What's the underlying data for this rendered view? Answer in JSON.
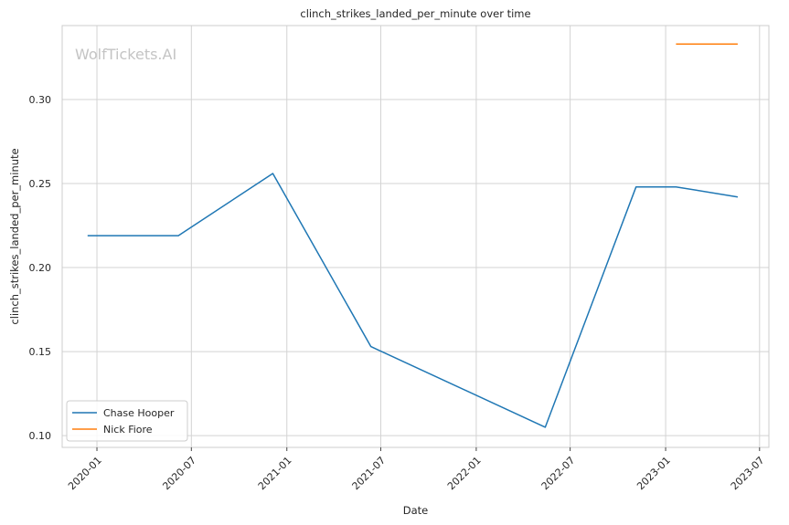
{
  "chart_data": {
    "type": "line",
    "title": "clinch_strikes_landed_per_minute over time",
    "xlabel": "Date",
    "ylabel": "clinch_strikes_landed_per_minute",
    "watermark": "WolfTickets.AI",
    "xlim": [
      "2019-10-26",
      "2023-07-19"
    ],
    "ylim": [
      0.093,
      0.344
    ],
    "x_ticks": [
      "2020-01",
      "2020-07",
      "2021-01",
      "2021-07",
      "2022-01",
      "2022-07",
      "2023-01",
      "2023-07"
    ],
    "y_ticks": [
      "0.10",
      "0.15",
      "0.20",
      "0.25",
      "0.30"
    ],
    "grid": true,
    "legend_position": "lower-left",
    "series": [
      {
        "name": "Chase Hooper",
        "color": "#1f77b4",
        "points": [
          {
            "x": "2019-12-14",
            "y": 0.219
          },
          {
            "x": "2020-06-06",
            "y": 0.219
          },
          {
            "x": "2020-12-05",
            "y": 0.256
          },
          {
            "x": "2021-06-12",
            "y": 0.153
          },
          {
            "x": "2022-05-14",
            "y": 0.105
          },
          {
            "x": "2022-11-05",
            "y": 0.248
          },
          {
            "x": "2023-01-21",
            "y": 0.248
          },
          {
            "x": "2023-05-20",
            "y": 0.242
          }
        ]
      },
      {
        "name": "Nick Fiore",
        "color": "#ff7f0e",
        "points": [
          {
            "x": "2023-01-21",
            "y": 0.333
          },
          {
            "x": "2023-05-20",
            "y": 0.333
          }
        ]
      }
    ]
  }
}
